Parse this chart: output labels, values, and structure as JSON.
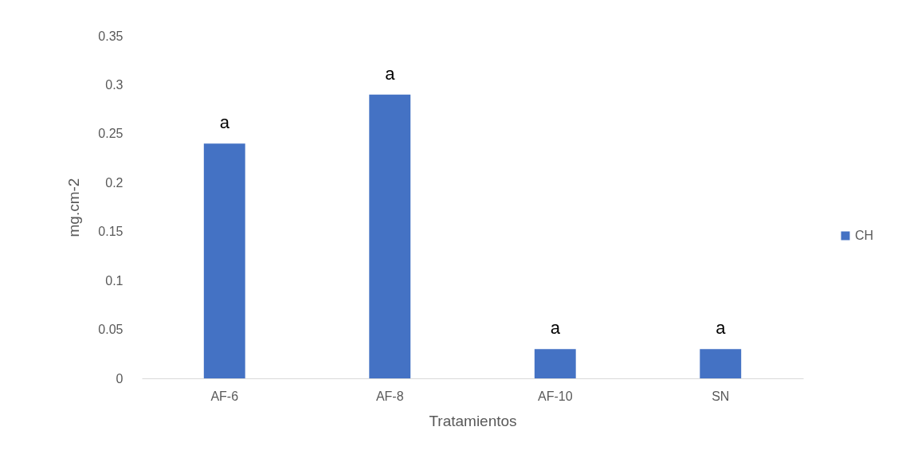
{
  "chart_data": {
    "type": "bar",
    "xlabel": "Tratamientos",
    "ylabel": "mg.cm-2",
    "categories": [
      "AF-6",
      "AF-8",
      "AF-10",
      "SN"
    ],
    "series": [
      {
        "name": "CH",
        "color": "#4472c4",
        "values": [
          0.24,
          0.29,
          0.03,
          0.03
        ]
      }
    ],
    "ylim": [
      0,
      0.35
    ],
    "yticks": [
      0,
      0.05,
      0.1,
      0.15,
      0.2,
      0.25,
      0.3,
      0.35
    ],
    "grid": false,
    "legend": "right",
    "annotations": [
      {
        "text": "a",
        "x": "AF-6",
        "y": 0.24
      },
      {
        "text": "a",
        "x": "AF-8",
        "y": 0.29
      },
      {
        "text": "a",
        "x": "AF-10",
        "y": 0.03
      },
      {
        "text": "a",
        "x": "SN",
        "y": 0.03
      }
    ]
  }
}
